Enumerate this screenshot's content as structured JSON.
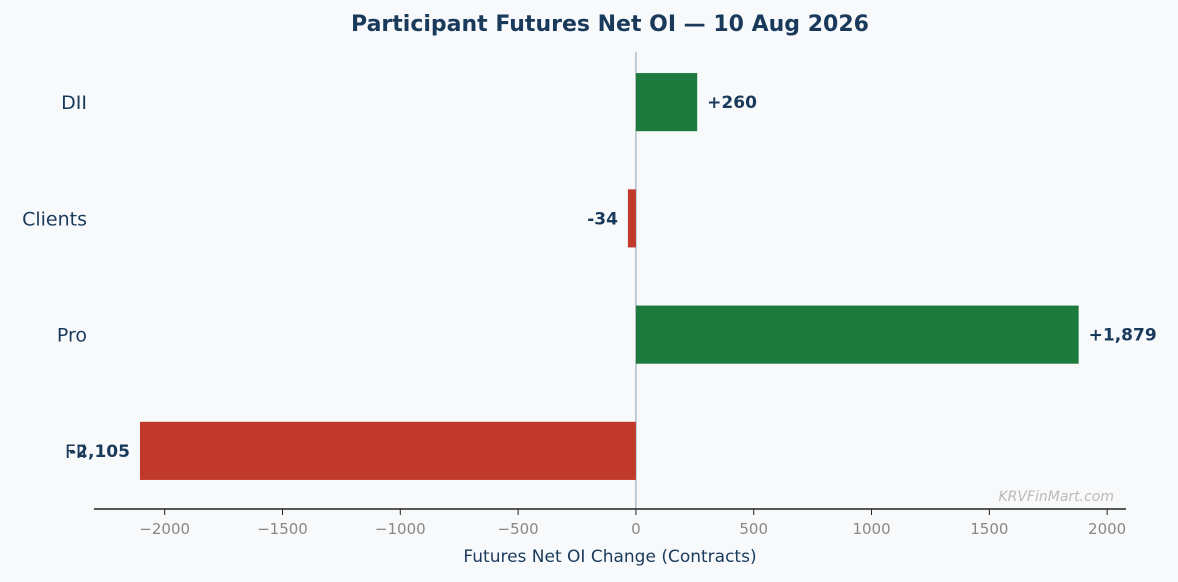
{
  "chart_data": {
    "type": "bar",
    "orientation": "horizontal",
    "title": "Participant Futures Net OI — 10 Aug 2026",
    "xlabel": "Futures Net OI Change (Contracts)",
    "ylabel": "",
    "categories": [
      "DII",
      "Clients",
      "Pro",
      "FII"
    ],
    "values": [
      260,
      -34,
      1879,
      -2105
    ],
    "data_labels": [
      "+260",
      "-34",
      "+1,879",
      "-2,105"
    ],
    "xlim": [
      -2300,
      2080
    ],
    "xticks": [
      -2000,
      -1500,
      -1000,
      -500,
      0,
      500,
      1000,
      1500,
      2000
    ],
    "xtick_labels": [
      "−2000",
      "−1500",
      "−1000",
      "−500",
      "0",
      "500",
      "1000",
      "1500",
      "2000"
    ],
    "grid": false,
    "colors": {
      "positive": "#1b7a3c",
      "negative": "#c0392b",
      "text": "#1a3a5c",
      "tick": "#888888",
      "zero_line": "#b0bcc8",
      "axis": "#222222",
      "watermark": "#bbbbbb"
    }
  },
  "watermark": "KRVFinMart.com"
}
